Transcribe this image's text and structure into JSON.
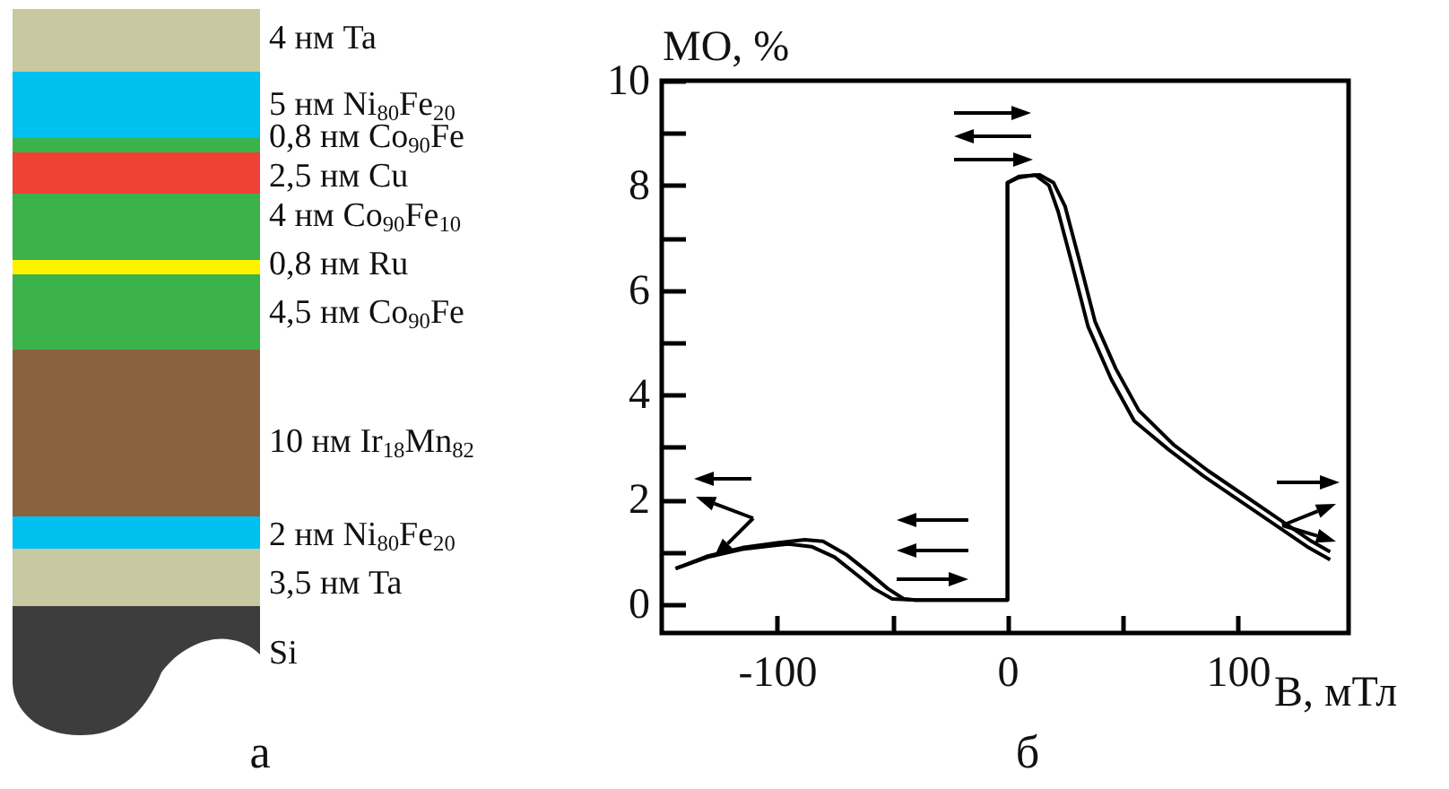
{
  "chart_data": [
    {
      "type": "other",
      "annotations": [
        "4 нм Ta",
        "5 нм Ni$_{80}$Fe$_{20}$",
        "0,8 нм Co$_{90}$Fe",
        "2,5 нм Cu",
        "4 нм Co$_{90}$Fe$_{10}$",
        "0,8 нм Ru",
        "4,5 нм Co$_{90}$Fe",
        "10 нм Ir$_{18}$Mn$_{82}$",
        "2 нм Ni$_{80}$Fe$_{20}$",
        "3,5 нм Ta",
        "Si",
        "а"
      ]
    },
    {
      "type": "line",
      "xlabel": "В, мТл",
      "ylabel": "МО, %",
      "annotations": [
        "б"
      ],
      "grid": false,
      "marker": "none",
      "line_style": "solid",
      "legend": false,
      "xlim": [
        -150,
        148
      ],
      "xticks": [
        -100,
        {
          "value": -50,
          "label": null
        },
        0,
        {
          "value": 50,
          "label": null
        },
        100
      ],
      "ylim": [
        -0.55,
        10
      ],
      "yticks": [
        0,
        {
          "value": 1,
          "label": null
        },
        2,
        {
          "value": 3,
          "label": null
        },
        4,
        {
          "value": 5,
          "label": null
        },
        6,
        {
          "value": 7,
          "label": null
        },
        8,
        {
          "value": 9,
          "label": null
        },
        10
      ],
      "series": [
        {
          "color": "#000000",
          "x": [
            -144,
            -130,
            -115,
            -100,
            -95,
            -85,
            -75,
            -65,
            -58,
            -50,
            -40,
            0,
            0,
            5,
            12,
            18,
            22,
            28,
            35,
            45,
            55,
            70,
            85,
            100,
            115,
            130,
            140
          ],
          "values": [
            0.68,
            0.9,
            1.05,
            1.13,
            1.15,
            1.1,
            0.9,
            0.55,
            0.3,
            0.1,
            0.08,
            0.08,
            8.05,
            8.15,
            8.2,
            8.0,
            7.5,
            6.5,
            5.3,
            4.3,
            3.5,
            2.95,
            2.45,
            2.0,
            1.55,
            1.1,
            0.85
          ]
        },
        {
          "color": "#000000",
          "x": [
            -144,
            -130,
            -115,
            -100,
            -88,
            -80,
            -70,
            -60,
            -52,
            -45,
            -40,
            0,
            0,
            5,
            14,
            20,
            25,
            31,
            38,
            47,
            57,
            72,
            87,
            102,
            117,
            132,
            140
          ],
          "values": [
            0.68,
            0.92,
            1.08,
            1.17,
            1.23,
            1.2,
            0.95,
            0.6,
            0.3,
            0.1,
            0.08,
            0.08,
            8.05,
            8.17,
            8.2,
            8.05,
            7.6,
            6.6,
            5.4,
            4.5,
            3.7,
            3.05,
            2.55,
            2.1,
            1.65,
            1.2,
            1.0
          ]
        }
      ]
    }
  ]
}
